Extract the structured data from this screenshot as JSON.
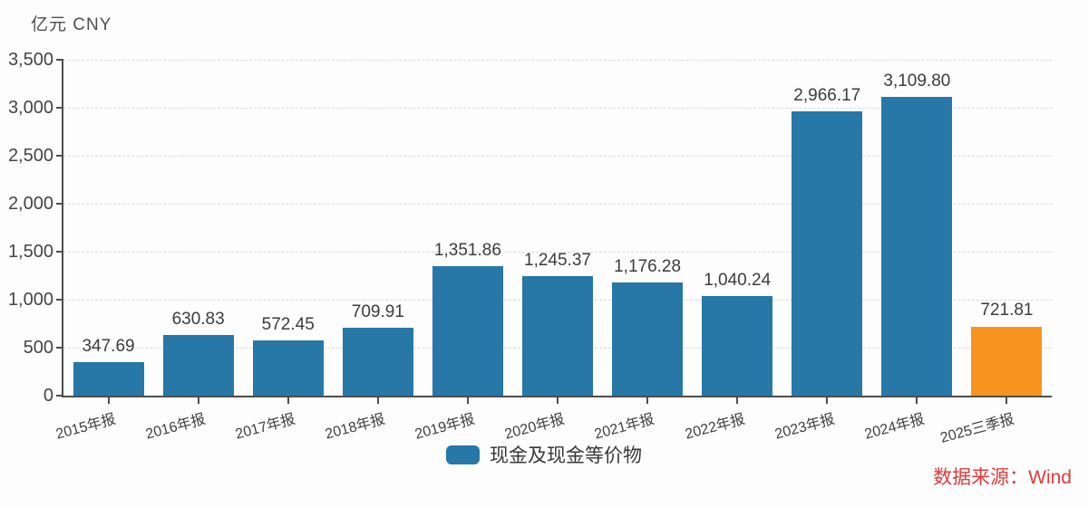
{
  "unit_label": "亿元 CNY",
  "source_note": "数据来源：Wind",
  "legend": {
    "items": [
      {
        "label": "现金及现金等价物",
        "color": "#2778a6"
      }
    ]
  },
  "colors": {
    "bar": "#2778a6",
    "highlight": "#f7941e",
    "axis": "#4d4d4d",
    "grid": "#d9d9d9",
    "value_text": "#3c3c3c",
    "source_text": "#e03b3b"
  },
  "chart_data": {
    "type": "bar",
    "title": "",
    "ylabel": "亿元 CNY",
    "xlabel": "",
    "categories": [
      "2015年报",
      "2016年报",
      "2017年报",
      "2018年报",
      "2019年报",
      "2020年报",
      "2021年报",
      "2022年报",
      "2023年报",
      "2024年报",
      "2025三季报"
    ],
    "values": [
      347.69,
      630.83,
      572.45,
      709.91,
      1351.86,
      1245.37,
      1176.28,
      1040.24,
      2966.17,
      3109.8,
      721.81
    ],
    "value_labels": [
      "347.69",
      "630.83",
      "572.45",
      "709.91",
      "1,351.86",
      "1,245.37",
      "1,176.28",
      "1,040.24",
      "2,966.17",
      "3,109.80",
      "721.81"
    ],
    "highlight_index": 10,
    "series_name": "现金及现金等价物",
    "ylim": [
      0,
      3500
    ],
    "ytick_interval": 500,
    "yticks": [
      "0",
      "500",
      "1,000",
      "1,500",
      "2,000",
      "2,500",
      "3,000",
      "3,500"
    ],
    "grid": "horizontal-dashed",
    "legend_position": "bottom-center",
    "xlabel_rotation_deg": -15
  }
}
